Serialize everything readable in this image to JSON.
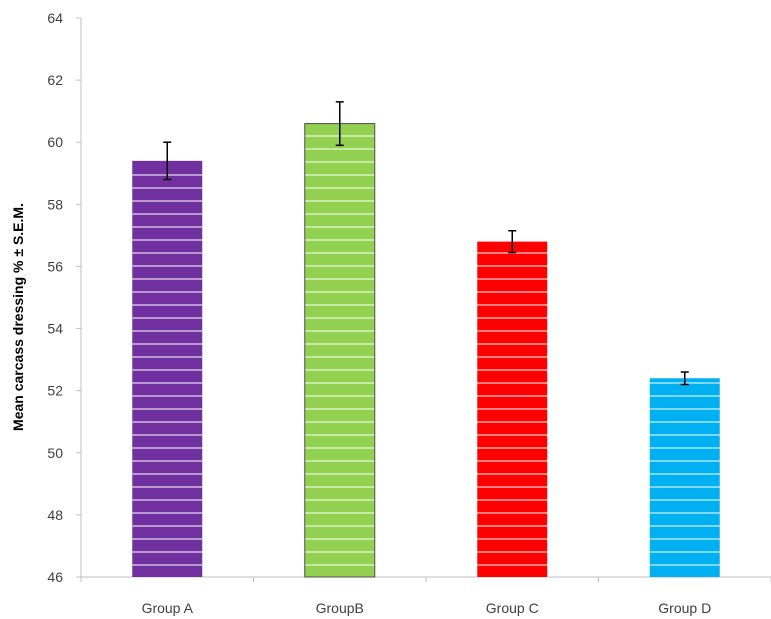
{
  "chart_data": {
    "type": "bar",
    "title": "",
    "xlabel": "",
    "ylabel": "Mean carcass dressing % ± S.E.M.",
    "ylim": [
      46,
      64
    ],
    "yticks": [
      46,
      48,
      50,
      52,
      54,
      56,
      58,
      60,
      62,
      64
    ],
    "categories": [
      "Group A",
      "GroupB",
      "Group C",
      "Group D"
    ],
    "values": [
      59.4,
      60.6,
      56.8,
      52.4
    ],
    "errors": [
      0.6,
      0.7,
      0.35,
      0.2
    ],
    "colors": [
      "#7030a0",
      "#92d050",
      "#ff0000",
      "#00b0f0"
    ],
    "bar_pattern": "white horizontal stripes",
    "grid": false,
    "legend": "none"
  }
}
